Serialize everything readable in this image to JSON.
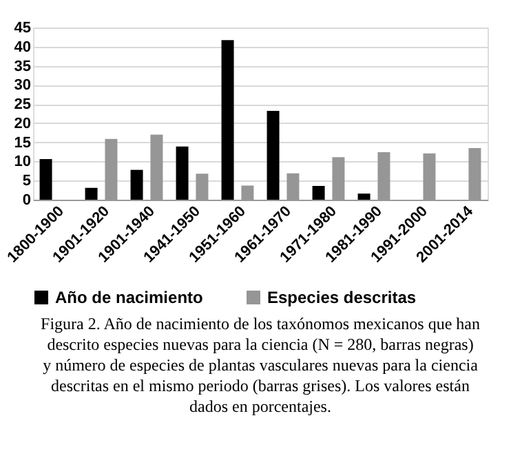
{
  "chart_data": {
    "type": "bar",
    "categories": [
      "1800-1900",
      "1901-1920",
      "1901-1940",
      "1941-1950",
      "1951-1960",
      "1961-1970",
      "1971-1980",
      "1981-1990",
      "1991-2000",
      "2001-2014"
    ],
    "series": [
      {
        "name": "Año de nacimiento",
        "color": "#000000",
        "values": [
          10.6,
          3.1,
          7.8,
          13.9,
          41.7,
          23.2,
          3.6,
          1.6,
          null,
          null
        ]
      },
      {
        "name": "Especies descritas",
        "color": "#969696",
        "values": [
          null,
          15.9,
          17.0,
          6.8,
          3.7,
          6.9,
          11.1,
          12.4,
          12.1,
          13.5
        ]
      }
    ],
    "ylim": [
      0,
      45
    ],
    "yticks": [
      0,
      5,
      10,
      15,
      20,
      25,
      30,
      35,
      40,
      45
    ],
    "grid": "y",
    "legend": "bottom",
    "annotations": [
      "Figura 2. Año de nacimiento de los taxónomos mexicanos que han",
      "descrito especies nuevas para la ciencia (N = 280, barras negras)",
      "y número de especies de plantas vasculares nuevas para la ciencia",
      "descritas en el mismo periodo (barras grises). Los valores están",
      "dados en porcentajes."
    ]
  }
}
